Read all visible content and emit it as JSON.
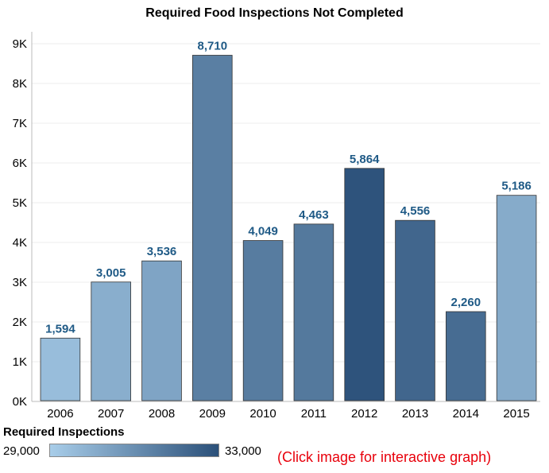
{
  "chart_data": {
    "type": "bar",
    "title": "Required Food Inspections Not Completed",
    "categories": [
      "2006",
      "2007",
      "2008",
      "2009",
      "2010",
      "2011",
      "2012",
      "2013",
      "2014",
      "2015"
    ],
    "values": [
      1594,
      3005,
      3536,
      8710,
      4049,
      4463,
      5864,
      4556,
      2260,
      5186
    ],
    "value_labels": [
      "1,594",
      "3,005",
      "3,536",
      "8,710",
      "4,049",
      "4,463",
      "5,864",
      "4,556",
      "2,260",
      "5,186"
    ],
    "required_inspections": [
      29500,
      30000,
      30300,
      31500,
      31600,
      31700,
      32900,
      32300,
      32100,
      30100
    ],
    "ylim": [
      0,
      9300
    ],
    "yticks": [
      0,
      1000,
      2000,
      3000,
      4000,
      5000,
      6000,
      7000,
      8000,
      9000
    ],
    "ytick_labels": [
      "0K",
      "1K",
      "2K",
      "3K",
      "4K",
      "5K",
      "6K",
      "7K",
      "8K",
      "9K"
    ],
    "xlabel": "",
    "ylabel": "",
    "grid": true,
    "color_legend": {
      "title": "Required Inspections",
      "min_label": "29,000",
      "max_label": "33,000",
      "min_value": 29000,
      "max_value": 33000,
      "min_color": "#a8cde9",
      "max_color": "#2b5079"
    },
    "label_color": "#1f5a86"
  },
  "note": "(Click image for interactive graph)"
}
